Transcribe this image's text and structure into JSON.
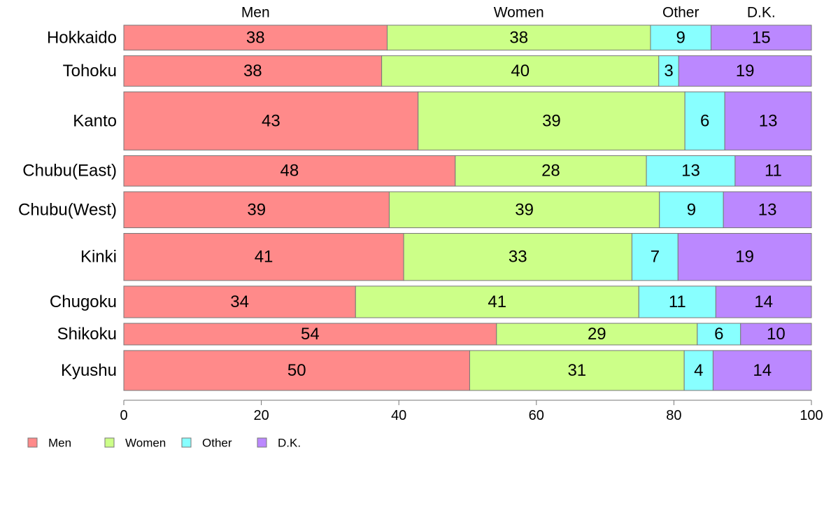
{
  "chart_data": {
    "type": "bar",
    "orientation": "horizontal",
    "stacked": true,
    "variable_width": true,
    "title": "",
    "xlabel": "",
    "ylabel": "",
    "xlim": [
      0,
      100
    ],
    "x_ticks": [
      0,
      20,
      40,
      60,
      80,
      100
    ],
    "grid": false,
    "legend_position": "bottom-left",
    "top_labels": [
      "Men",
      "Women",
      "Other",
      "D.K."
    ],
    "categories": [
      "Hokkaido",
      "Tohoku",
      "Kanto",
      "Chubu(East)",
      "Chubu(West)",
      "Kinki",
      "Chugoku",
      "Shikoku",
      "Kyushu"
    ],
    "row_weights": [
      0.045,
      0.055,
      0.105,
      0.055,
      0.065,
      0.085,
      0.057,
      0.039,
      0.072
    ],
    "series": [
      {
        "name": "Men",
        "color": "#ff8a8a",
        "values": [
          38.3,
          37.5,
          42.8,
          48.2,
          38.6,
          40.7,
          33.7,
          54.2,
          50.3
        ]
      },
      {
        "name": "Women",
        "color": "#ccff88",
        "values": [
          38.3,
          40.3,
          38.8,
          27.8,
          39.3,
          33.2,
          41.2,
          29.2,
          31.2
        ]
      },
      {
        "name": "Other",
        "color": "#88ffff",
        "values": [
          8.8,
          2.9,
          5.8,
          12.9,
          9.3,
          6.7,
          11.2,
          6.3,
          4.2
        ]
      },
      {
        "name": "D.K.",
        "color": "#bb88ff",
        "values": [
          14.6,
          19.3,
          12.6,
          11.1,
          12.8,
          19.4,
          13.9,
          10.3,
          14.3
        ]
      }
    ],
    "labels": [
      [
        "38",
        "38",
        "9",
        "15"
      ],
      [
        "38",
        "40",
        "3",
        "19"
      ],
      [
        "43",
        "39",
        "6",
        "13"
      ],
      [
        "48",
        "28",
        "13",
        "11"
      ],
      [
        "39",
        "39",
        "9",
        "13"
      ],
      [
        "41",
        "33",
        "7",
        "19"
      ],
      [
        "34",
        "41",
        "11",
        "14"
      ],
      [
        "54",
        "29",
        "6",
        "10"
      ],
      [
        "50",
        "31",
        "4",
        "14"
      ]
    ]
  }
}
